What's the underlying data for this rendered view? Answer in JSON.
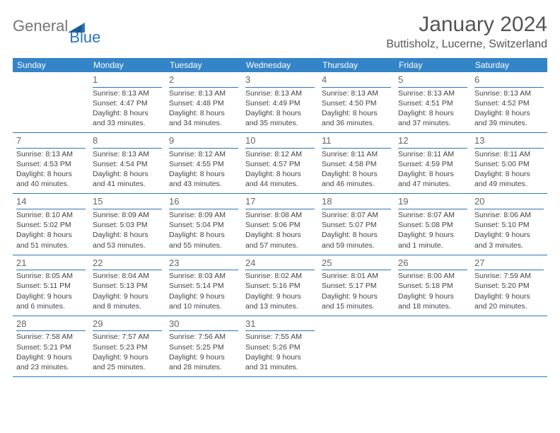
{
  "logo": {
    "text1": "General",
    "text2": "Blue"
  },
  "header": {
    "title": "January 2024",
    "location": "Buttisholz, Lucerne, Switzerland"
  },
  "styling": {
    "header_bg": "#3484c8",
    "header_fg": "#ffffff",
    "row_border": "#2a76b8",
    "daynum_color": "#666666",
    "body_text": "#444444",
    "title_color": "#555555",
    "page_bg": "#ffffff",
    "day_header_fontsize": 12,
    "cell_fontsize": 10.5,
    "title_fontsize": 30,
    "location_fontsize": 16
  },
  "day_headers": [
    "Sunday",
    "Monday",
    "Tuesday",
    "Wednesday",
    "Thursday",
    "Friday",
    "Saturday"
  ],
  "weeks": [
    [
      null,
      {
        "n": "1",
        "sr": "8:13 AM",
        "ss": "4:47 PM",
        "dl": "8 hours and 33 minutes."
      },
      {
        "n": "2",
        "sr": "8:13 AM",
        "ss": "4:48 PM",
        "dl": "8 hours and 34 minutes."
      },
      {
        "n": "3",
        "sr": "8:13 AM",
        "ss": "4:49 PM",
        "dl": "8 hours and 35 minutes."
      },
      {
        "n": "4",
        "sr": "8:13 AM",
        "ss": "4:50 PM",
        "dl": "8 hours and 36 minutes."
      },
      {
        "n": "5",
        "sr": "8:13 AM",
        "ss": "4:51 PM",
        "dl": "8 hours and 37 minutes."
      },
      {
        "n": "6",
        "sr": "8:13 AM",
        "ss": "4:52 PM",
        "dl": "8 hours and 39 minutes."
      }
    ],
    [
      {
        "n": "7",
        "sr": "8:13 AM",
        "ss": "4:53 PM",
        "dl": "8 hours and 40 minutes."
      },
      {
        "n": "8",
        "sr": "8:13 AM",
        "ss": "4:54 PM",
        "dl": "8 hours and 41 minutes."
      },
      {
        "n": "9",
        "sr": "8:12 AM",
        "ss": "4:55 PM",
        "dl": "8 hours and 43 minutes."
      },
      {
        "n": "10",
        "sr": "8:12 AM",
        "ss": "4:57 PM",
        "dl": "8 hours and 44 minutes."
      },
      {
        "n": "11",
        "sr": "8:11 AM",
        "ss": "4:58 PM",
        "dl": "8 hours and 46 minutes."
      },
      {
        "n": "12",
        "sr": "8:11 AM",
        "ss": "4:59 PM",
        "dl": "8 hours and 47 minutes."
      },
      {
        "n": "13",
        "sr": "8:11 AM",
        "ss": "5:00 PM",
        "dl": "8 hours and 49 minutes."
      }
    ],
    [
      {
        "n": "14",
        "sr": "8:10 AM",
        "ss": "5:02 PM",
        "dl": "8 hours and 51 minutes."
      },
      {
        "n": "15",
        "sr": "8:09 AM",
        "ss": "5:03 PM",
        "dl": "8 hours and 53 minutes."
      },
      {
        "n": "16",
        "sr": "8:09 AM",
        "ss": "5:04 PM",
        "dl": "8 hours and 55 minutes."
      },
      {
        "n": "17",
        "sr": "8:08 AM",
        "ss": "5:06 PM",
        "dl": "8 hours and 57 minutes."
      },
      {
        "n": "18",
        "sr": "8:07 AM",
        "ss": "5:07 PM",
        "dl": "8 hours and 59 minutes."
      },
      {
        "n": "19",
        "sr": "8:07 AM",
        "ss": "5:08 PM",
        "dl": "9 hours and 1 minute."
      },
      {
        "n": "20",
        "sr": "8:06 AM",
        "ss": "5:10 PM",
        "dl": "9 hours and 3 minutes."
      }
    ],
    [
      {
        "n": "21",
        "sr": "8:05 AM",
        "ss": "5:11 PM",
        "dl": "9 hours and 6 minutes."
      },
      {
        "n": "22",
        "sr": "8:04 AM",
        "ss": "5:13 PM",
        "dl": "9 hours and 8 minutes."
      },
      {
        "n": "23",
        "sr": "8:03 AM",
        "ss": "5:14 PM",
        "dl": "9 hours and 10 minutes."
      },
      {
        "n": "24",
        "sr": "8:02 AM",
        "ss": "5:16 PM",
        "dl": "9 hours and 13 minutes."
      },
      {
        "n": "25",
        "sr": "8:01 AM",
        "ss": "5:17 PM",
        "dl": "9 hours and 15 minutes."
      },
      {
        "n": "26",
        "sr": "8:00 AM",
        "ss": "5:18 PM",
        "dl": "9 hours and 18 minutes."
      },
      {
        "n": "27",
        "sr": "7:59 AM",
        "ss": "5:20 PM",
        "dl": "9 hours and 20 minutes."
      }
    ],
    [
      {
        "n": "28",
        "sr": "7:58 AM",
        "ss": "5:21 PM",
        "dl": "9 hours and 23 minutes."
      },
      {
        "n": "29",
        "sr": "7:57 AM",
        "ss": "5:23 PM",
        "dl": "9 hours and 25 minutes."
      },
      {
        "n": "30",
        "sr": "7:56 AM",
        "ss": "5:25 PM",
        "dl": "9 hours and 28 minutes."
      },
      {
        "n": "31",
        "sr": "7:55 AM",
        "ss": "5:26 PM",
        "dl": "9 hours and 31 minutes."
      },
      null,
      null,
      null
    ]
  ],
  "labels": {
    "sunrise": "Sunrise:",
    "sunset": "Sunset:",
    "daylight": "Daylight:"
  }
}
